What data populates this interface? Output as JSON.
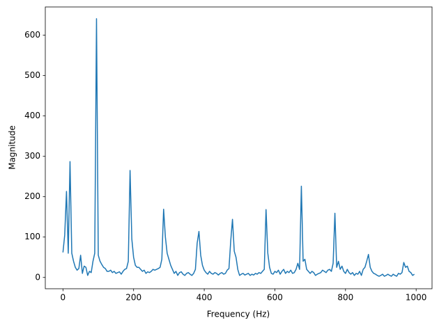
{
  "chart_data": {
    "type": "line",
    "xlabel": "Frequency (Hz)",
    "ylabel": "Magnitude",
    "x": [
      0,
      5,
      10,
      15,
      20,
      25,
      30,
      35,
      40,
      45,
      50,
      55,
      60,
      65,
      70,
      75,
      80,
      85,
      90,
      95,
      100,
      105,
      110,
      115,
      120,
      125,
      130,
      135,
      140,
      145,
      150,
      155,
      160,
      165,
      170,
      175,
      180,
      185,
      190,
      195,
      200,
      205,
      210,
      215,
      220,
      225,
      230,
      235,
      240,
      245,
      250,
      255,
      260,
      265,
      270,
      275,
      280,
      285,
      290,
      295,
      300,
      305,
      310,
      315,
      320,
      325,
      330,
      335,
      340,
      345,
      350,
      355,
      360,
      365,
      370,
      375,
      380,
      385,
      390,
      395,
      400,
      405,
      410,
      415,
      420,
      425,
      430,
      435,
      440,
      445,
      450,
      455,
      460,
      465,
      470,
      475,
      480,
      485,
      490,
      495,
      500,
      505,
      510,
      515,
      520,
      525,
      530,
      535,
      540,
      545,
      550,
      555,
      560,
      565,
      570,
      575,
      580,
      585,
      590,
      595,
      600,
      605,
      610,
      615,
      620,
      625,
      630,
      635,
      640,
      645,
      650,
      655,
      660,
      665,
      670,
      675,
      680,
      685,
      690,
      695,
      700,
      705,
      710,
      715,
      720,
      725,
      730,
      735,
      740,
      745,
      750,
      755,
      760,
      765,
      770,
      775,
      780,
      785,
      790,
      795,
      800,
      805,
      810,
      815,
      820,
      825,
      830,
      835,
      840,
      845,
      850,
      855,
      860,
      865,
      870,
      875,
      880,
      885,
      890,
      895,
      900,
      905,
      910,
      915,
      920,
      925,
      930,
      935,
      940,
      945,
      950,
      955,
      960,
      965,
      970,
      975,
      980,
      985,
      990,
      995
    ],
    "series": [
      {
        "color": "#1f77b4",
        "values": [
          62,
          105,
          213,
          60,
          287,
          60,
          40,
          25,
          18,
          22,
          55,
          10,
          28,
          25,
          5,
          15,
          12,
          40,
          60,
          641,
          55,
          40,
          32,
          25,
          22,
          15,
          15,
          18,
          12,
          15,
          10,
          12,
          14,
          8,
          15,
          20,
          22,
          40,
          265,
          95,
          50,
          30,
          25,
          25,
          20,
          15,
          18,
          10,
          14,
          12,
          15,
          20,
          18,
          20,
          22,
          25,
          45,
          169,
          100,
          60,
          45,
          30,
          20,
          10,
          15,
          5,
          12,
          14,
          8,
          5,
          10,
          12,
          8,
          5,
          10,
          20,
          85,
          114,
          55,
          30,
          18,
          12,
          8,
          15,
          10,
          8,
          12,
          10,
          6,
          10,
          12,
          8,
          10,
          18,
          22,
          90,
          144,
          65,
          50,
          20,
          5,
          8,
          10,
          6,
          8,
          10,
          5,
          8,
          6,
          10,
          8,
          12,
          10,
          15,
          20,
          168,
          60,
          25,
          10,
          8,
          15,
          12,
          18,
          8,
          15,
          20,
          10,
          15,
          12,
          18,
          10,
          12,
          20,
          35,
          20,
          226,
          40,
          45,
          20,
          15,
          10,
          15,
          12,
          5,
          8,
          10,
          12,
          18,
          15,
          12,
          18,
          20,
          15,
          35,
          159,
          25,
          40,
          20,
          28,
          15,
          10,
          20,
          12,
          8,
          12,
          5,
          10,
          8,
          15,
          5,
          20,
          25,
          40,
          57,
          25,
          15,
          10,
          8,
          5,
          3,
          5,
          8,
          3,
          5,
          8,
          5,
          3,
          8,
          5,
          3,
          10,
          8,
          12,
          37,
          25,
          28,
          15,
          12,
          5,
          8
        ]
      }
    ],
    "xlim": [
      -50,
      1045
    ],
    "xticks": [
      0,
      200,
      400,
      600,
      800,
      1000
    ],
    "ylim": [
      -28,
      670
    ],
    "yticks": [
      0,
      100,
      200,
      300,
      400,
      500,
      600
    ]
  }
}
